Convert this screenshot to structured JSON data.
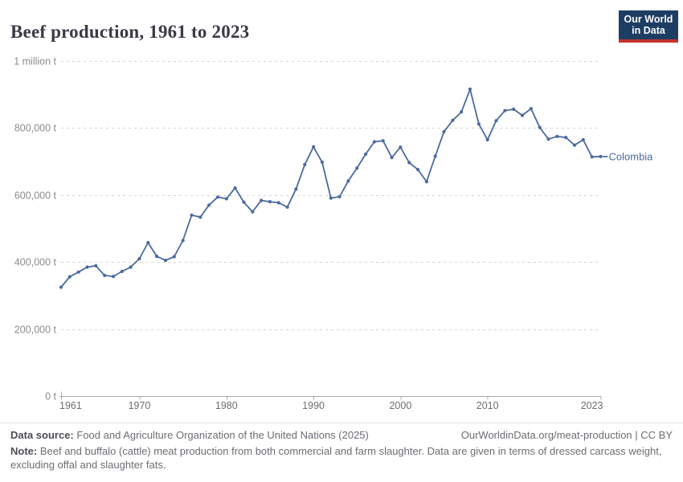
{
  "header": {
    "title": "Beef production, 1961 to 2023",
    "logo": {
      "line1": "Our World",
      "line2": "in Data"
    }
  },
  "chart_data": {
    "type": "line",
    "title": "Beef production, 1961 to 2023",
    "entity": "Colombia",
    "unit": "t",
    "grid": "horizontal-dashed",
    "legend_position": "end-of-line-label",
    "xlim": [
      1961,
      2023
    ],
    "ylim": [
      0,
      1000000
    ],
    "x": [
      1961,
      1962,
      1963,
      1964,
      1965,
      1966,
      1967,
      1968,
      1969,
      1970,
      1971,
      1972,
      1973,
      1974,
      1975,
      1976,
      1977,
      1978,
      1979,
      1980,
      1981,
      1982,
      1983,
      1984,
      1985,
      1986,
      1987,
      1988,
      1989,
      1990,
      1991,
      1992,
      1993,
      1994,
      1995,
      1996,
      1997,
      1998,
      1999,
      2000,
      2001,
      2002,
      2003,
      2004,
      2005,
      2006,
      2007,
      2008,
      2009,
      2010,
      2011,
      2012,
      2013,
      2014,
      2015,
      2016,
      2017,
      2018,
      2019,
      2020,
      2021,
      2022,
      2023
    ],
    "values": [
      325000,
      356000,
      370000,
      385000,
      389000,
      360000,
      357000,
      372000,
      385000,
      410000,
      458000,
      417000,
      405000,
      416000,
      464000,
      540000,
      534000,
      570000,
      594000,
      589000,
      621000,
      579000,
      550000,
      584000,
      580000,
      577000,
      564000,
      618000,
      691000,
      744000,
      698000,
      591000,
      595000,
      642000,
      680000,
      722000,
      759000,
      762000,
      712000,
      743000,
      697000,
      676000,
      640000,
      716000,
      789000,
      823000,
      848000,
      916000,
      812000,
      765000,
      822000,
      852000,
      856000,
      838000,
      858000,
      802000,
      767000,
      775000,
      772000,
      749000,
      765000,
      714000,
      715000
    ],
    "yticks": [
      {
        "value": 0,
        "label": "0 t"
      },
      {
        "value": 200000,
        "label": "200,000 t"
      },
      {
        "value": 400000,
        "label": "400,000 t"
      },
      {
        "value": 600000,
        "label": "600,000 t"
      },
      {
        "value": 800000,
        "label": "800,000 t"
      },
      {
        "value": 1000000,
        "label": "1 million t"
      }
    ],
    "xticks": [
      {
        "value": 1961,
        "label": "1961"
      },
      {
        "value": 1970,
        "label": "1970"
      },
      {
        "value": 1980,
        "label": "1980"
      },
      {
        "value": 1990,
        "label": "1990"
      },
      {
        "value": 2000,
        "label": "2000"
      },
      {
        "value": 2010,
        "label": "2010"
      },
      {
        "value": 2023,
        "label": "2023"
      }
    ],
    "colors": {
      "line": "#4c6a9e",
      "gridline": "#d6d6d6",
      "axis": "#a9a9a9",
      "ytick_text": "#8b8b8b",
      "xtick_text": "#6e6e6e",
      "logo_bg": "#1d3d63",
      "logo_bar": "#c5332d"
    }
  },
  "footer": {
    "data_source_label": "Data source:",
    "data_source_text": "Food and Agriculture Organization of the United Nations (2025)",
    "attribution_link": "OurWorldinData.org/meat-production",
    "attribution_license": " | CC BY",
    "note_label": "Note:",
    "note_text": "Beef and buffalo (cattle) meat production from both commercial and farm slaughter. Data are given in terms of dressed carcass weight, excluding offal and slaughter fats."
  }
}
